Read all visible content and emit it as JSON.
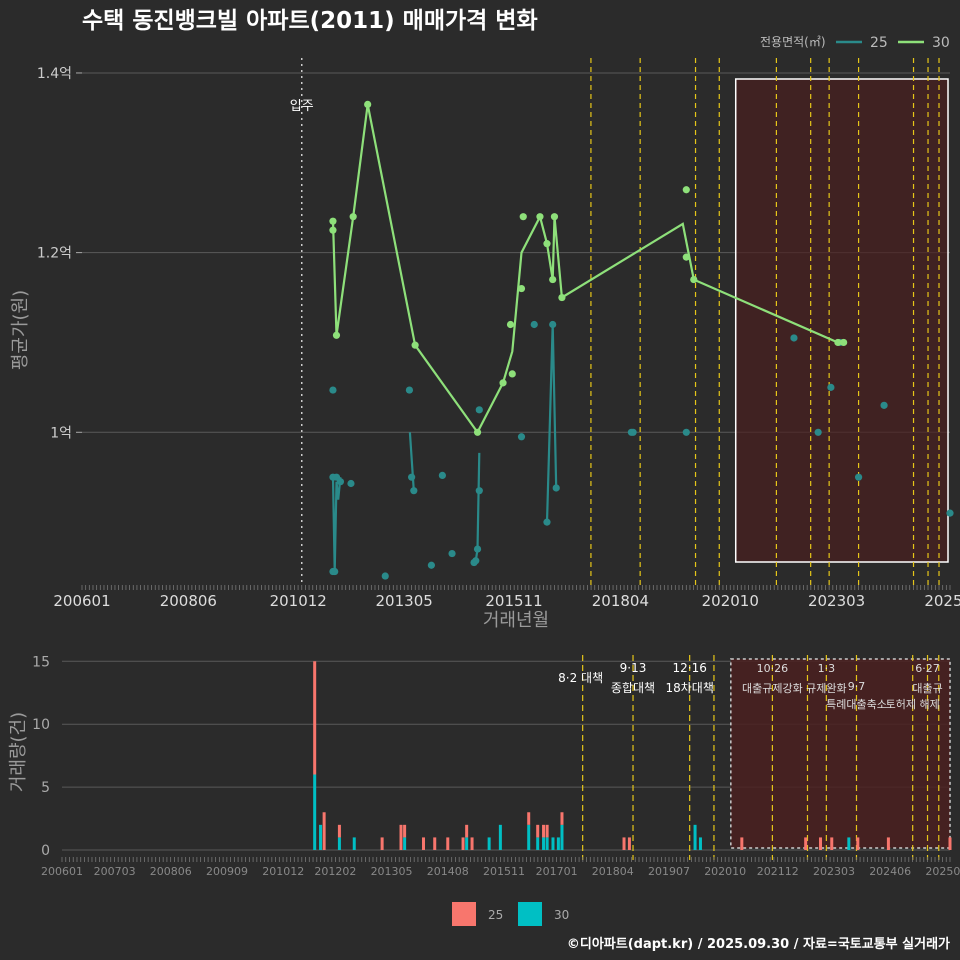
{
  "title": "수택 동진뱅크빌 아파트(2011) 매매가격 변화",
  "footer": "©디아파트(dapt.kr) / 2025.09.30 / 자료=국토교통부 실거래가",
  "colors": {
    "bg": "#2b2b2b",
    "grid": "#5a5a5a",
    "s25": "#2a8a8a",
    "s30": "#8ee07a",
    "bar25": "#f8766d",
    "bar30": "#00bfc4",
    "policy": "#e6c619",
    "shade": "#4a2020"
  },
  "chart_data": [
    {
      "type": "line",
      "title": "수택 동진뱅크빌 아파트(2011) 매매가격 변화",
      "xlabel": "거래년월",
      "ylabel": "평균가(원)",
      "x_tick_labels": [
        "200601",
        "200806",
        "201012",
        "201305",
        "201511",
        "201804",
        "202010",
        "202303",
        "2025"
      ],
      "y_ticks": [
        1.0,
        1.2,
        1.4
      ],
      "y_tick_labels": [
        "1억",
        "1.2억",
        "1.4억"
      ],
      "ylim": [
        0.83,
        1.42
      ],
      "xlim": [
        2006.0,
        2025.75
      ],
      "legend_title": "전용면적(㎡)",
      "legend": [
        "25",
        "30"
      ],
      "annotation": {
        "x": 2011.0,
        "label": "입주"
      },
      "shaded_region": [
        2020.92,
        2025.75
      ],
      "series": [
        {
          "name": "25",
          "points": [
            [
              2011.71,
              0.845
            ],
            [
              2011.71,
              0.95
            ],
            [
              2011.75,
              0.845
            ],
            [
              2011.79,
              0.95
            ],
            [
              2011.88,
              0.945
            ],
            [
              2012.12,
              0.943
            ],
            [
              2012.9,
              0.84
            ],
            [
              2013.5,
              0.95
            ],
            [
              2013.55,
              0.935
            ],
            [
              2013.95,
              0.852
            ],
            [
              2014.2,
              0.952
            ],
            [
              2014.42,
              0.865
            ],
            [
              2014.92,
              0.855
            ],
            [
              2014.96,
              0.857
            ],
            [
              2015.0,
              0.87
            ],
            [
              2015.04,
              0.935
            ],
            [
              2015.04,
              1.025
            ],
            [
              2016.0,
              0.995
            ],
            [
              2016.29,
              1.12
            ],
            [
              2016.58,
              0.9
            ],
            [
              2016.71,
              1.12
            ],
            [
              2016.79,
              0.938
            ],
            [
              2018.5,
              1.0
            ],
            [
              2018.54,
              1.0
            ],
            [
              2019.75,
              1.0
            ],
            [
              2022.2,
              1.105
            ],
            [
              2022.75,
              1.0
            ],
            [
              2023.04,
              1.05
            ],
            [
              2023.25,
              1.1
            ],
            [
              2023.67,
              0.95
            ],
            [
              2024.25,
              1.03
            ],
            [
              2025.75,
              0.91
            ],
            [
              2011.71,
              1.047
            ],
            [
              2013.45,
              1.047
            ]
          ],
          "line": [
            [
              2011.71,
              0.95
            ],
            [
              2011.75,
              0.845
            ],
            [
              2011.79,
              0.945
            ],
            [
              2011.83,
              0.925
            ],
            [
              2011.88,
              0.95
            ],
            [
              null,
              null
            ],
            [
              2013.46,
              1.0
            ],
            [
              2013.55,
              0.935
            ],
            [
              null,
              null
            ],
            [
              2014.92,
              0.855
            ],
            [
              2014.96,
              0.857
            ],
            [
              2015.0,
              0.87
            ],
            [
              2015.04,
              0.977
            ],
            [
              null,
              null
            ],
            [
              2016.58,
              0.9
            ],
            [
              2016.71,
              1.12
            ],
            [
              2016.79,
              0.938
            ]
          ]
        },
        {
          "name": "30",
          "points": [
            [
              2011.71,
              1.235
            ],
            [
              2011.71,
              1.225
            ],
            [
              2011.79,
              1.108
            ],
            [
              2012.17,
              1.24
            ],
            [
              2012.5,
              1.365
            ],
            [
              2013.58,
              1.097
            ],
            [
              2015.0,
              1.0
            ],
            [
              2015.58,
              1.055
            ],
            [
              2015.79,
              1.065
            ],
            [
              2015.75,
              1.12
            ],
            [
              2016.0,
              1.16
            ],
            [
              2016.04,
              1.24
            ],
            [
              2016.42,
              1.24
            ],
            [
              2016.58,
              1.21
            ],
            [
              2016.71,
              1.17
            ],
            [
              2016.75,
              1.24
            ],
            [
              2016.92,
              1.15
            ],
            [
              2019.75,
              1.27
            ],
            [
              2019.75,
              1.195
            ],
            [
              2019.92,
              1.17
            ],
            [
              2023.2,
              1.1
            ],
            [
              2023.33,
              1.1
            ]
          ],
          "line": [
            [
              2011.71,
              1.235
            ],
            [
              2011.79,
              1.108
            ],
            [
              2012.17,
              1.24
            ],
            [
              2012.5,
              1.365
            ],
            [
              2013.58,
              1.097
            ],
            [
              2015.0,
              1.0
            ],
            [
              2015.58,
              1.055
            ],
            [
              2015.79,
              1.09
            ],
            [
              2016.0,
              1.2
            ],
            [
              2016.42,
              1.24
            ],
            [
              2016.58,
              1.21
            ],
            [
              2016.71,
              1.17
            ],
            [
              2016.75,
              1.24
            ],
            [
              2016.92,
              1.15
            ],
            [
              2019.67,
              1.232
            ],
            [
              2019.92,
              1.17
            ],
            [
              2023.2,
              1.1
            ]
          ]
        }
      ]
    },
    {
      "type": "bar",
      "ylabel": "거래량(건)",
      "x_tick_labels": [
        "200601",
        "200703",
        "200806",
        "200909",
        "201012",
        "201202",
        "201305",
        "201408",
        "201511",
        "201701",
        "201804",
        "201907",
        "202010",
        "202112",
        "202303",
        "202406",
        "202509"
      ],
      "y_ticks": [
        0,
        5,
        10,
        15
      ],
      "ylim": [
        0,
        15.5
      ],
      "legend": [
        "25",
        "30"
      ],
      "shaded_region": [
        2020.92,
        2025.75
      ],
      "series": [
        {
          "name": "30",
          "bars": [
            [
              2011.62,
              6
            ],
            [
              2011.75,
              2
            ],
            [
              2012.17,
              1
            ],
            [
              2012.5,
              1
            ],
            [
              2013.62,
              1
            ],
            [
              2015.0,
              1
            ],
            [
              2015.5,
              1
            ],
            [
              2015.75,
              2
            ],
            [
              2016.38,
              2
            ],
            [
              2016.58,
              1
            ],
            [
              2016.71,
              1
            ],
            [
              2016.79,
              1
            ],
            [
              2016.92,
              1
            ],
            [
              2017.04,
              1
            ],
            [
              2017.12,
              2
            ],
            [
              2020.08,
              2
            ],
            [
              2020.2,
              1
            ],
            [
              2023.5,
              1
            ]
          ]
        },
        {
          "name": "25",
          "bars": [
            [
              2011.62,
              9
            ],
            [
              2011.75,
              0
            ],
            [
              2011.83,
              3
            ],
            [
              2012.17,
              1
            ],
            [
              2013.12,
              1
            ],
            [
              2013.54,
              2
            ],
            [
              2013.62,
              1
            ],
            [
              2014.04,
              1
            ],
            [
              2014.29,
              1
            ],
            [
              2014.58,
              1
            ],
            [
              2014.92,
              1
            ],
            [
              2015.0,
              1
            ],
            [
              2015.12,
              1
            ],
            [
              2016.38,
              1
            ],
            [
              2016.58,
              1
            ],
            [
              2016.71,
              1
            ],
            [
              2016.79,
              1
            ],
            [
              2017.12,
              1
            ],
            [
              2018.5,
              1
            ],
            [
              2018.62,
              1
            ],
            [
              2021.12,
              1
            ],
            [
              2022.54,
              1
            ],
            [
              2022.87,
              1
            ],
            [
              2023.12,
              1
            ],
            [
              2023.7,
              1
            ],
            [
              2024.38,
              1
            ],
            [
              2025.75,
              1
            ]
          ]
        }
      ],
      "policies": [
        {
          "x": 2017.58,
          "date": "8·2",
          "label": "대책"
        },
        {
          "x": 2018.7,
          "date": "9·13",
          "label": "종합대책"
        },
        {
          "x": 2019.96,
          "date": "12·16",
          "label": "18차대책"
        },
        {
          "x": 2020.5,
          "date": "",
          "label": ""
        },
        {
          "x": 2021.8,
          "date": "10·26",
          "label": "대출규제강화"
        },
        {
          "x": 2022.58,
          "date": "",
          "label": ""
        },
        {
          "x": 2023.0,
          "date": "1·3",
          "label": "규제완화"
        },
        {
          "x": 2023.67,
          "date": "9·7",
          "label": "특례대출축소"
        },
        {
          "x": 2024.92,
          "date": "",
          "label": "토허제 해제"
        },
        {
          "x": 2025.25,
          "date": "6·27",
          "label": "대출규"
        },
        {
          "x": 2025.5,
          "date": "",
          "label": ""
        }
      ]
    }
  ]
}
